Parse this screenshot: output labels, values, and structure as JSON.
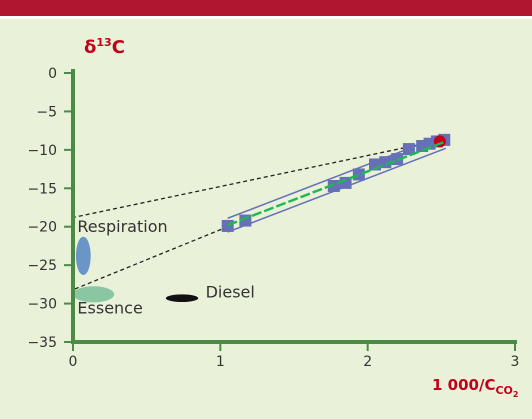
{
  "chart_data": {
    "type": "scatter",
    "ylabel": {
      "main": "δ",
      "sup": "13",
      "tail": "C"
    },
    "xlabel": {
      "main": "1 000/C",
      "sub": "CO",
      "subsub": "2"
    },
    "xlim": [
      0,
      3
    ],
    "ylim": [
      -35,
      0
    ],
    "x_ticks": [
      0,
      1,
      2,
      3
    ],
    "y_ticks": [
      0,
      -5,
      -10,
      -15,
      -20,
      -25,
      -30,
      -35
    ],
    "x_tick_labels": [
      "0",
      "1",
      "2",
      "3"
    ],
    "y_tick_labels": [
      "0",
      "−5",
      "−10",
      "−15",
      "−20",
      "−25",
      "−30",
      "−35"
    ],
    "points": [
      {
        "x": 1.05,
        "y": -19.9
      },
      {
        "x": 1.17,
        "y": -19.2
      },
      {
        "x": 1.77,
        "y": -14.7
      },
      {
        "x": 1.85,
        "y": -14.3
      },
      {
        "x": 1.94,
        "y": -13.2
      },
      {
        "x": 2.05,
        "y": -11.9
      },
      {
        "x": 2.12,
        "y": -11.6
      },
      {
        "x": 2.2,
        "y": -11.2
      },
      {
        "x": 2.28,
        "y": -9.9
      },
      {
        "x": 2.37,
        "y": -9.5
      },
      {
        "x": 2.42,
        "y": -9.2
      },
      {
        "x": 2.47,
        "y": -8.9
      },
      {
        "x": 2.52,
        "y": -8.7
      }
    ],
    "highlight_point": {
      "x": 2.49,
      "y": -8.9
    },
    "fit_line": [
      [
        1.05,
        -19.8
      ],
      [
        2.53,
        -8.9
      ]
    ],
    "extrapolations": [
      {
        "from": [
          2.53,
          -8.6
        ],
        "to": [
          0,
          -18.8
        ]
      },
      {
        "from": [
          1.05,
          -20.0
        ],
        "to": [
          0,
          -28.2
        ]
      }
    ],
    "annotations": [
      {
        "text": "Respiration",
        "x": 0.03,
        "y": -20.7
      },
      {
        "text": "Essence",
        "x": 0.03,
        "y": -31.3
      },
      {
        "text": "Diesel",
        "x": 0.9,
        "y": -29.2
      }
    ],
    "source_ellipses": [
      {
        "name": "respiration",
        "cx": 0.07,
        "cy": -23.8,
        "rx": 0.05,
        "ry": 2.5,
        "color": "#6a95c7"
      },
      {
        "name": "essence",
        "cx": 0.14,
        "cy": -28.8,
        "rx": 0.14,
        "ry": 1.05,
        "color": "#8ac6a2"
      },
      {
        "name": "diesel",
        "cx": 0.74,
        "cy": -29.3,
        "rx": 0.11,
        "ry": 0.5,
        "color": "#111111"
      }
    ],
    "colors": {
      "header_bar": "#b0162d",
      "background": "#e9f1d9",
      "axis": "#4a8b46",
      "label_red": "#c3001b",
      "points": "#6570b8",
      "fit_line": "#1db84f",
      "envelope": "#6570b8",
      "highlight": "#c3001b"
    }
  }
}
